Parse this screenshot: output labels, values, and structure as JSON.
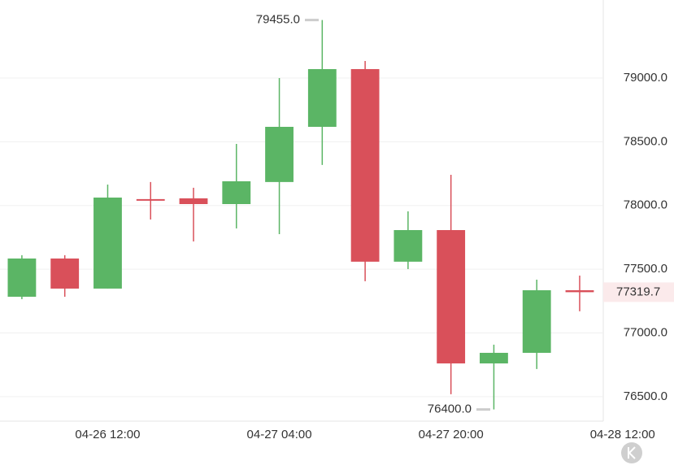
{
  "chart_data": {
    "type": "candlestick",
    "open": [
      77284,
      77584,
      77348,
      78050,
      78056,
      78011,
      78184,
      78617,
      79070,
      77559,
      77807,
      76761,
      76844,
      77335
    ],
    "high": [
      77610,
      77610,
      78164,
      78184,
      78139,
      78483,
      79000,
      79455,
      79134,
      77954,
      78241,
      76908,
      77418,
      77450
    ],
    "low": [
      77265,
      77284,
      77348,
      77890,
      77718,
      77820,
      77775,
      78318,
      77406,
      77501,
      76519,
      76400,
      76717,
      77170
    ],
    "close": [
      77584,
      77348,
      78062,
      78040,
      78011,
      78190,
      78617,
      79070,
      77559,
      77807,
      76761,
      76844,
      77335,
      77319.7
    ],
    "up_color": "#5bb565",
    "down_color": "#d9505a",
    "high_label": {
      "value": 79455,
      "label": "79455.0"
    },
    "low_label": {
      "value": 76400,
      "label": "76400.0"
    },
    "xlim": [
      -0.51,
      13.55
    ],
    "xticks": [
      {
        "value": 2,
        "label": "04-26 12:00"
      },
      {
        "value": 6,
        "label": "04-27 04:00"
      },
      {
        "value": 10,
        "label": "04-27 20:00"
      },
      {
        "value": 14,
        "label": "04-28 12:00"
      }
    ],
    "ylim": [
      76308,
      79612
    ],
    "yticks": [
      {
        "value": 76500,
        "label": "76500.0"
      },
      {
        "value": 77000,
        "label": "77000.0"
      },
      {
        "value": 77500,
        "label": "77500.0"
      },
      {
        "value": 78000,
        "label": "78000.0"
      },
      {
        "value": 78500,
        "label": "78500.0"
      },
      {
        "value": 79000,
        "label": "79000.0"
      }
    ],
    "grid": true
  }
}
